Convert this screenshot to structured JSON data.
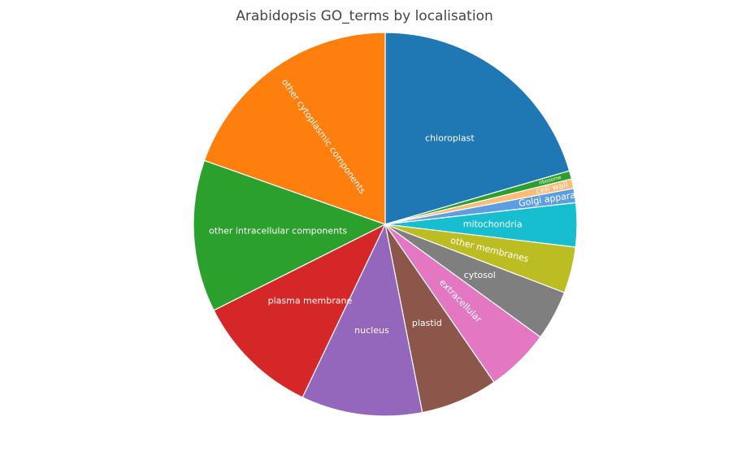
{
  "chart_data": {
    "type": "pie",
    "title": "Arabidopsis GO_terms by localisation",
    "slices": [
      {
        "label": "chloroplast",
        "value": 20.5,
        "color": "#1f77b4",
        "label_size": 11,
        "rotate": false
      },
      {
        "label": "ribosome",
        "value": 0.7,
        "color": "#2ca02c",
        "label_size": 6,
        "rotate": true
      },
      {
        "label": "cell wall",
        "value": 0.8,
        "color": "#ffbb78",
        "label_size": 10,
        "rotate": true
      },
      {
        "label": "Golgi apparatus",
        "value": 1.2,
        "color": "#5d9ee0",
        "label_size": 11,
        "rotate": true
      },
      {
        "label": "mitochondria",
        "value": 3.7,
        "color": "#17becf",
        "label_size": 11,
        "rotate": true
      },
      {
        "label": "other membranes",
        "value": 3.9,
        "color": "#bcbd22",
        "label_size": 11,
        "rotate": true
      },
      {
        "label": "cytosol",
        "value": 4.2,
        "color": "#7f7f7f",
        "label_size": 11,
        "rotate": false
      },
      {
        "label": "extracellular",
        "value": 5.4,
        "color": "#e377c2",
        "label_size": 11,
        "rotate": true
      },
      {
        "label": "plastid",
        "value": 6.5,
        "color": "#8c564b",
        "label_size": 11,
        "rotate": false
      },
      {
        "label": "nucleus",
        "value": 10.2,
        "color": "#9467bd",
        "label_size": 11,
        "rotate": false
      },
      {
        "label": "plasma membrane",
        "value": 10.5,
        "color": "#d62728",
        "label_size": 11,
        "rotate": false
      },
      {
        "label": "other intracellular components",
        "value": 12.8,
        "color": "#2ca02c",
        "label_size": 11,
        "rotate": false
      },
      {
        "label": "other cytoplasmic components",
        "value": 19.6,
        "color": "#ff7f0e",
        "label_size": 11,
        "rotate": true
      }
    ],
    "legend": "none"
  }
}
